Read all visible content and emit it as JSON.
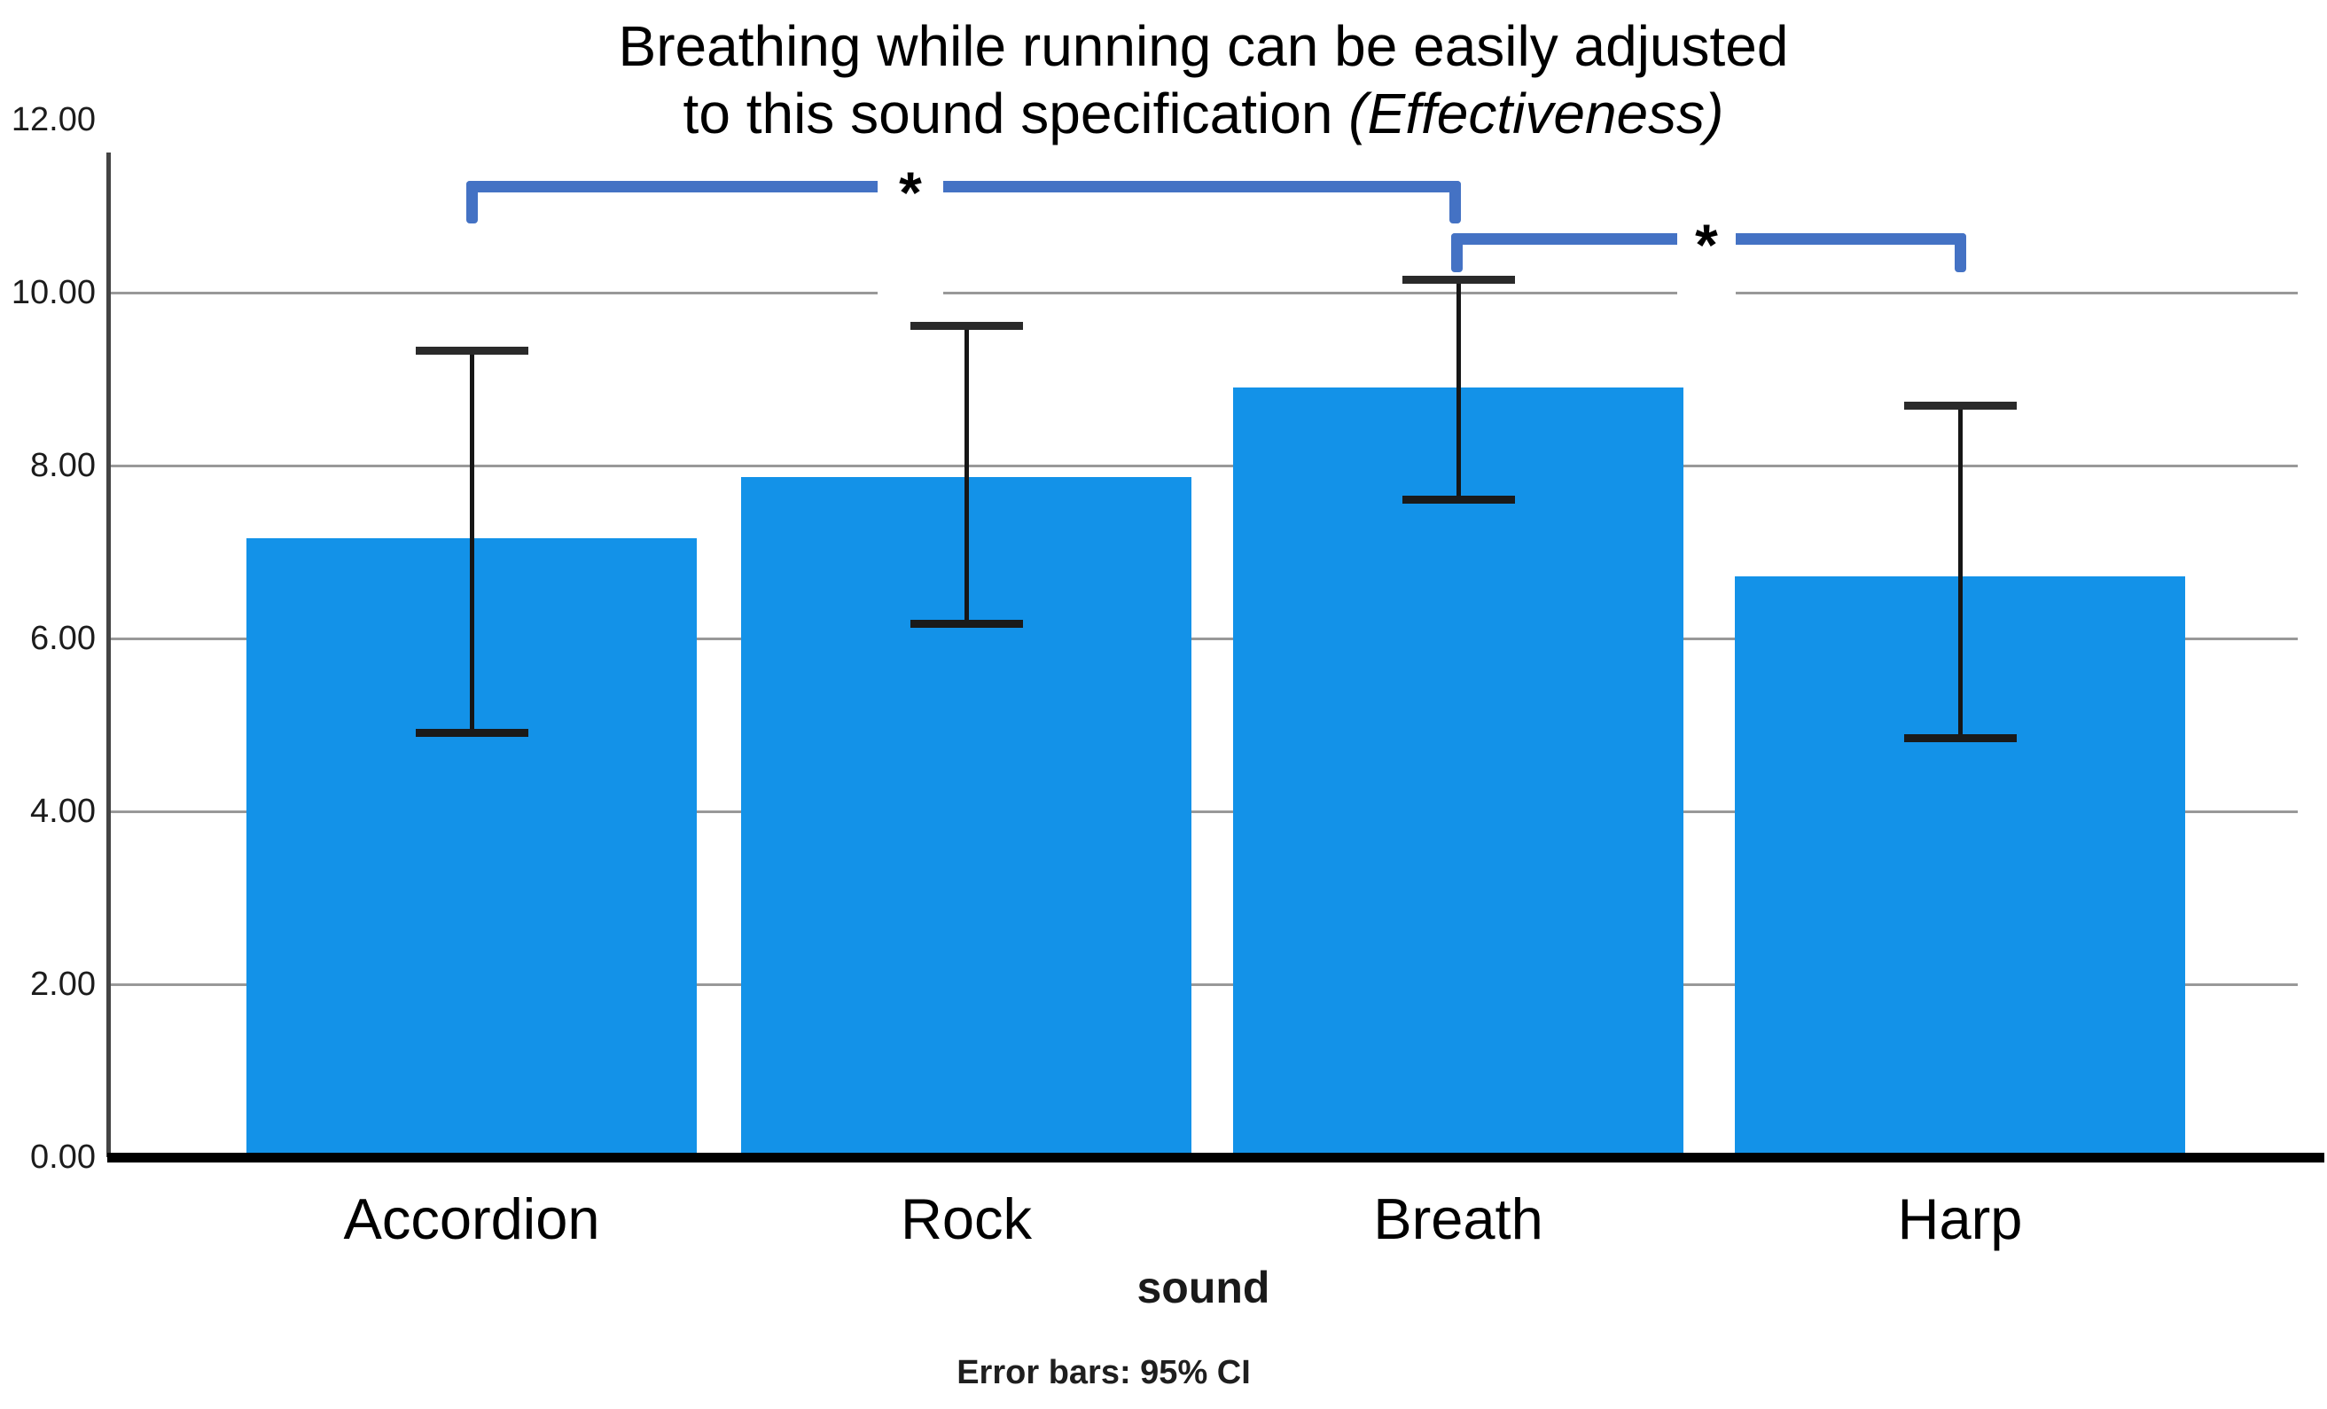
{
  "title": {
    "line1": "Breathing while running can be easily adjusted",
    "line2_regular": "to this sound specification ",
    "line2_italic": "(Effectiveness)"
  },
  "chart_data": {
    "type": "bar",
    "title": "Breathing while running can be easily adjusted to this sound specification (Effectiveness)",
    "xlabel": "sound",
    "ylabel": "",
    "footnote": "Error bars: 95% CI",
    "categories": [
      "Accordion",
      "Rock",
      "Breath",
      "Harp"
    ],
    "values": [
      7.16,
      7.87,
      8.9,
      6.72
    ],
    "error_bars": {
      "kind": "95% CI",
      "upper": [
        9.33,
        9.62,
        10.15,
        8.69
      ],
      "lower": [
        4.91,
        6.17,
        7.61,
        4.85
      ]
    },
    "significance": [
      {
        "from": "Accordion",
        "to": "Breath",
        "label": "*"
      },
      {
        "from": "Breath",
        "to": "Harp",
        "label": "*"
      }
    ],
    "ylim": [
      0,
      12
    ],
    "ytick_step": 2,
    "yticks": [
      "0.00",
      "2.00",
      "4.00",
      "6.00",
      "8.00",
      "10.00",
      "12.00"
    ],
    "grid": true,
    "legend": false
  },
  "colors": {
    "bar": "#1392E8",
    "bracket": "#4472C4",
    "gridline": "#999999",
    "axis": "#444444",
    "baseline": "#000000",
    "error_bar": "#161616"
  }
}
